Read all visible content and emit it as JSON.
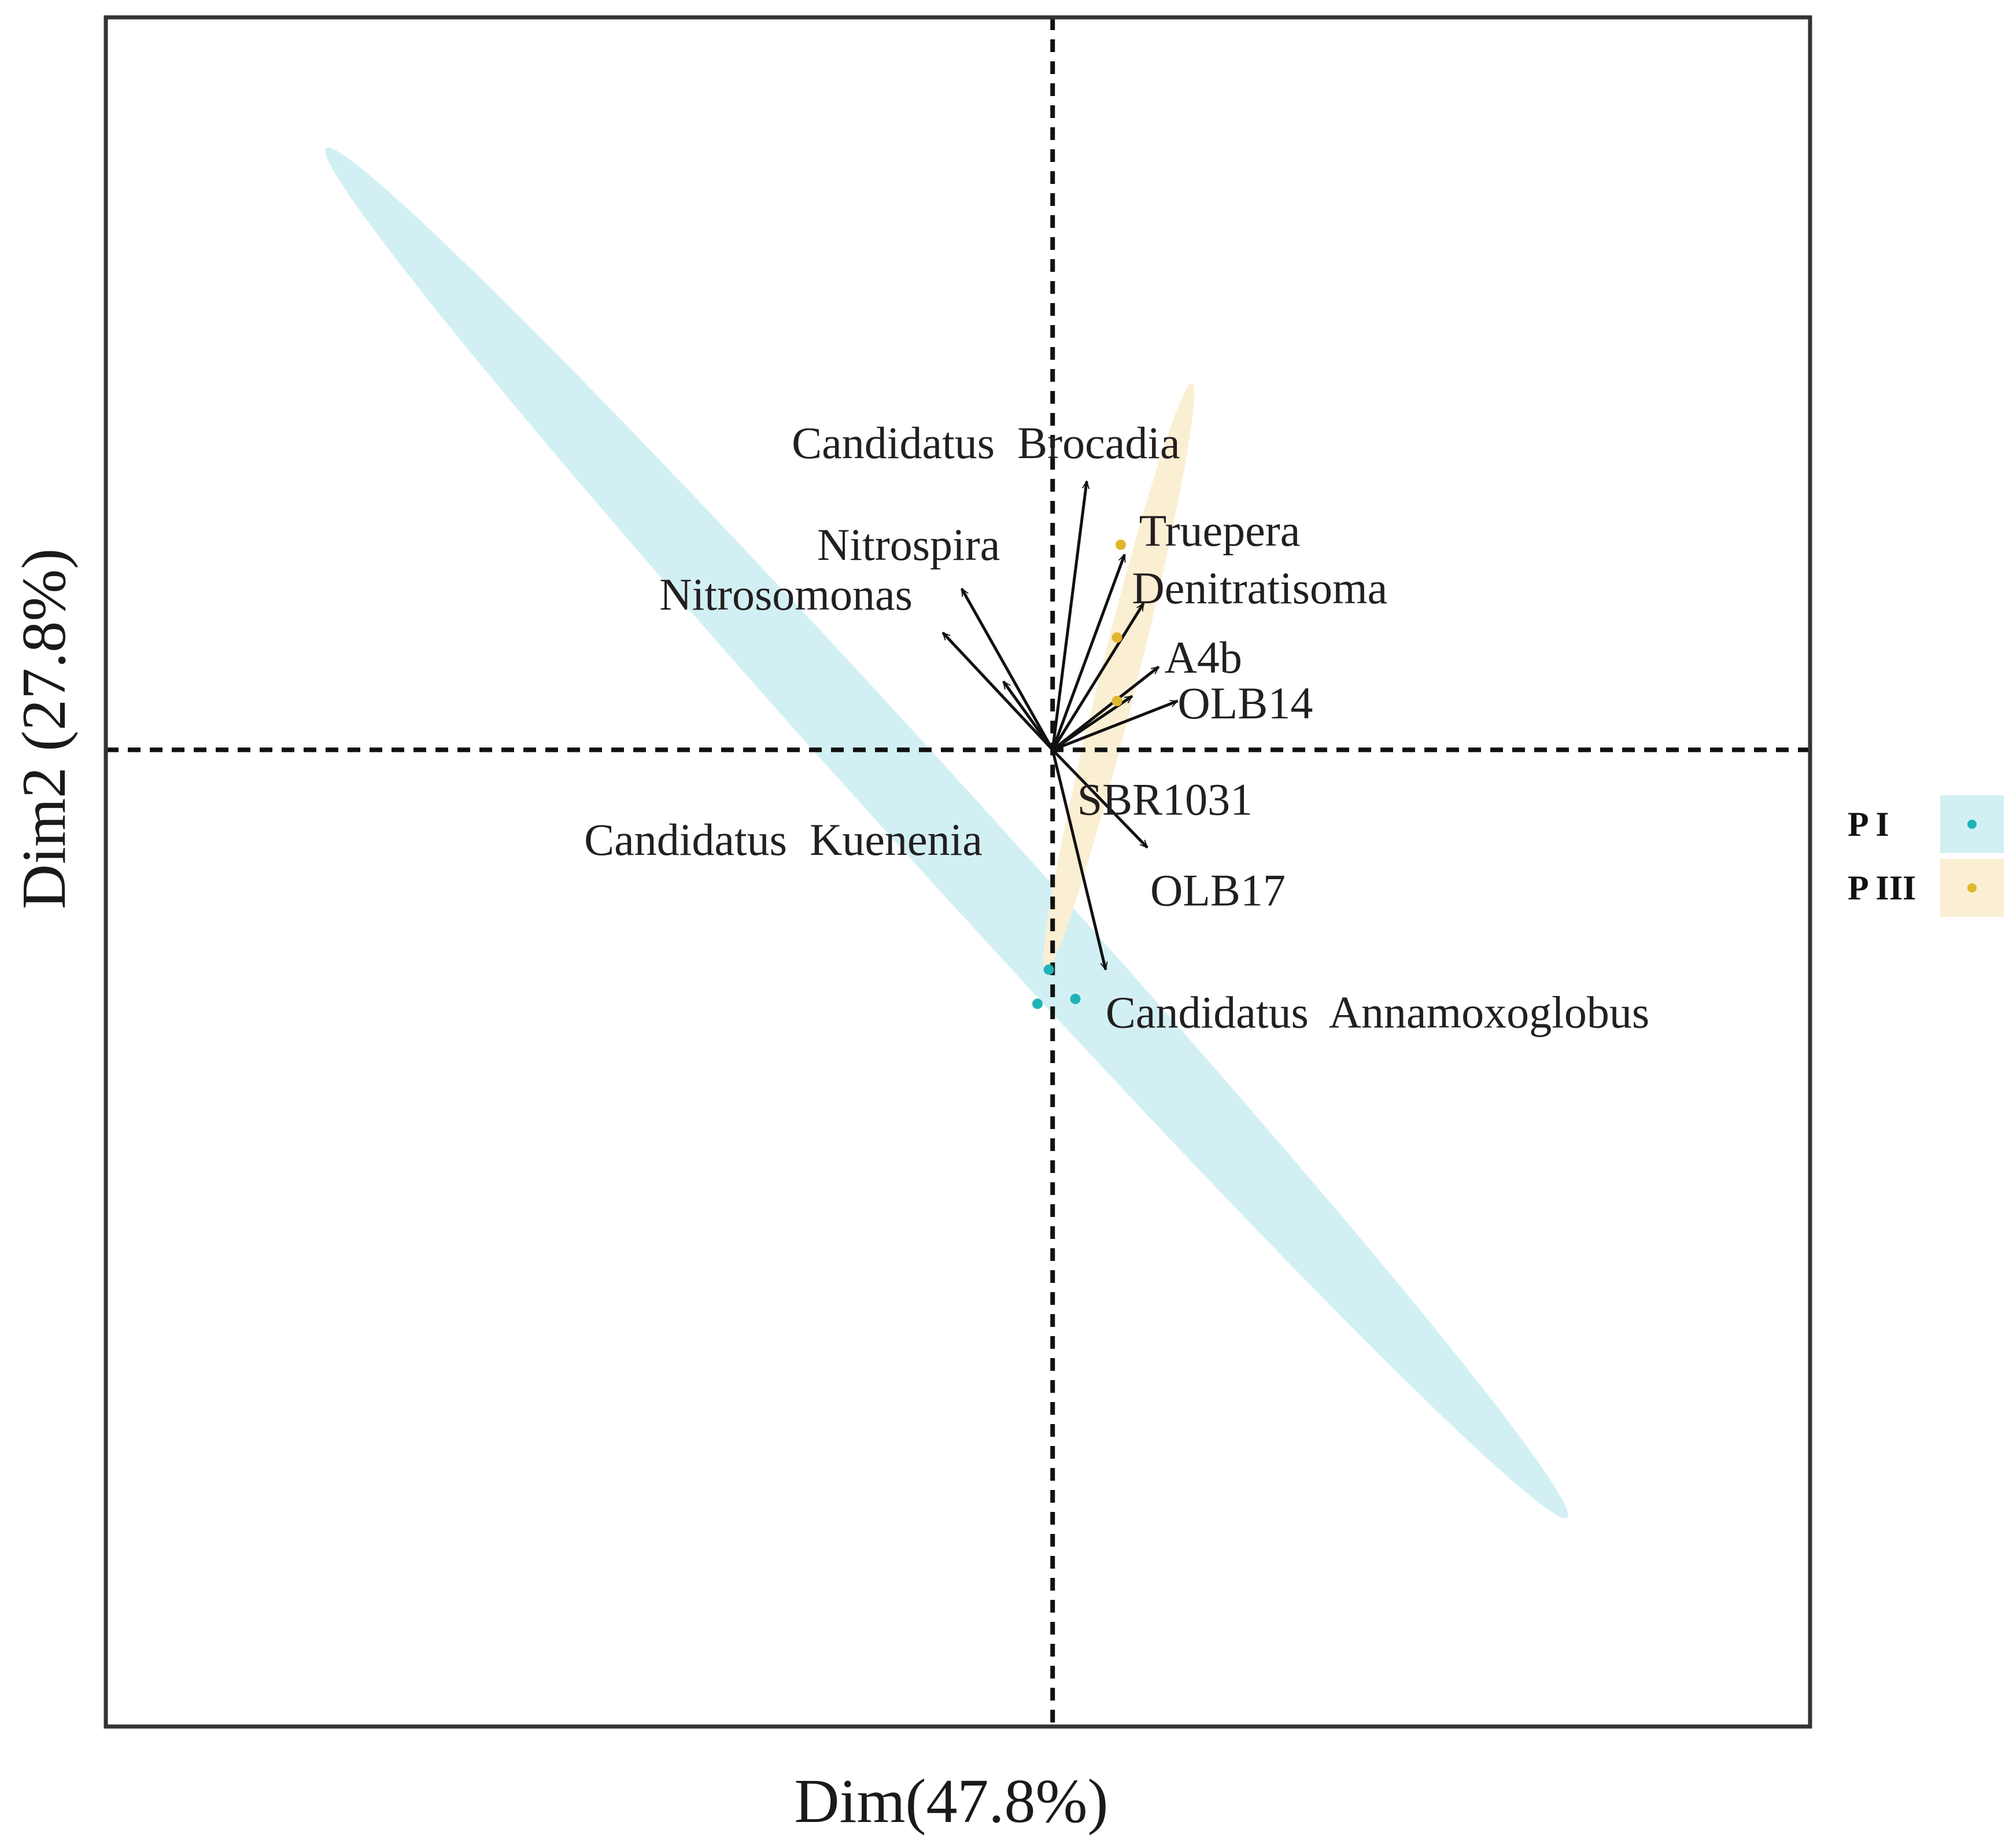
{
  "chart_data": {
    "type": "scatter",
    "subtype": "pca-biplot",
    "xlabel": "Dim(47.8%)",
    "ylabel": "Dim2 (27.8%)",
    "xlim": [
      -2.5,
      2.0
    ],
    "ylim": [
      -2.0,
      1.5
    ],
    "grid": false,
    "legend_position": "right",
    "reference_lines": {
      "x": 0,
      "y": 0,
      "style": "dashed"
    },
    "colors": {
      "PI_point": "#1fb3b8",
      "PI_ellipse": "#d2f0f4",
      "PIII_point": "#e0b62a",
      "PIII_ellipse": "#fbefd3",
      "arrow": "#111111",
      "frame": "#333333"
    },
    "series": [
      {
        "name": "P I",
        "color_key": "PI",
        "points": [
          {
            "x": -0.01,
            "y": -0.45
          },
          {
            "x": -0.04,
            "y": -0.52
          },
          {
            "x": 0.06,
            "y": -0.51
          }
        ],
        "ellipse": {
          "cx": -0.28,
          "cy": -0.17,
          "rx": 2.44,
          "ry": 0.09,
          "angle_deg": 47.8
        }
      },
      {
        "name": "P III",
        "color_key": "PIII",
        "points": [
          {
            "x": 0.18,
            "y": 0.42
          },
          {
            "x": 0.17,
            "y": 0.23
          },
          {
            "x": 0.17,
            "y": 0.1
          }
        ],
        "ellipse": {
          "cx": 0.175,
          "cy": 0.15,
          "rx": 0.05,
          "ry": 0.62,
          "angle_deg": 14
        }
      }
    ],
    "loadings": [
      {
        "name": "Candidatus  Brocadia",
        "x": 0.09,
        "y": 0.55
      },
      {
        "name": "Truepera",
        "x": 0.19,
        "y": 0.4
      },
      {
        "name": "Nitrospira",
        "x": -0.24,
        "y": 0.33
      },
      {
        "name": "Denitratisoma",
        "x": 0.24,
        "y": 0.3
      },
      {
        "name": "Nitrosomonas",
        "x": -0.29,
        "y": 0.24
      },
      {
        "name": "A4b",
        "x": 0.28,
        "y": 0.17
      },
      {
        "name": "OLB14",
        "x": 0.33,
        "y": 0.1
      },
      {
        "name": "SBR1031",
        "x": 0.21,
        "y": 0.11
      },
      {
        "name": "Candidatus  Kuenenia",
        "x": -0.13,
        "y": 0.14
      },
      {
        "name": "OLB17",
        "x": 0.25,
        "y": -0.2
      },
      {
        "name": "Candidatus  Annamoxoglobus",
        "x": 0.14,
        "y": -0.45
      }
    ]
  }
}
